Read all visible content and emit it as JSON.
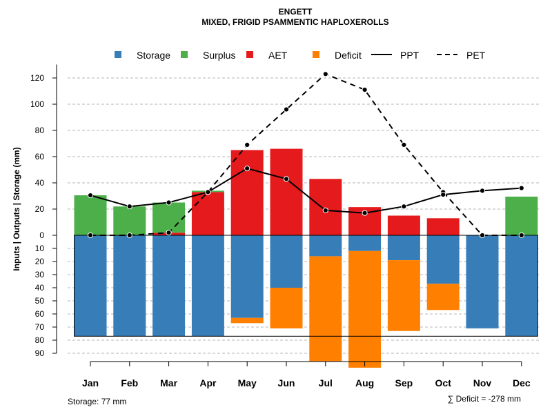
{
  "chart_data": {
    "type": "bar",
    "title": "ENGETT",
    "subtitle": "MIXED, FRIGID PSAMMENTIC HAPLOXEROLLS",
    "ylabel": "Inputs | Outputs | Storage    (mm)",
    "xlabel": "",
    "categories": [
      "Jan",
      "Feb",
      "Mar",
      "Apr",
      "May",
      "Jun",
      "Jul",
      "Aug",
      "Sep",
      "Oct",
      "Nov",
      "Dec"
    ],
    "upper_axis": {
      "ylim": [
        0,
        125
      ],
      "ticks": [
        0,
        20,
        40,
        60,
        80,
        100,
        120
      ],
      "gridlines": true
    },
    "lower_axis": {
      "ylim": [
        0,
        95
      ],
      "ticks": [
        10,
        20,
        30,
        40,
        50,
        60,
        70,
        80,
        90
      ],
      "gridlines": true
    },
    "legend": {
      "placement": "top",
      "items": [
        {
          "label": "Storage",
          "kind": "square",
          "color": "#377EB8"
        },
        {
          "label": "Surplus",
          "kind": "square",
          "color": "#4DAF4A"
        },
        {
          "label": "AET",
          "kind": "square",
          "color": "#E41A1C"
        },
        {
          "label": "Deficit",
          "kind": "square",
          "color": "#FF7F00"
        },
        {
          "label": "PPT",
          "kind": "solid-line",
          "color": "#000000"
        },
        {
          "label": "PET",
          "kind": "dashed-line",
          "color": "#000000"
        }
      ]
    },
    "series": [
      {
        "name": "AET",
        "color": "#E41A1C",
        "position": "upper-stack-base",
        "values": [
          0,
          0,
          2,
          33,
          65,
          66,
          43,
          21.5,
          15,
          13,
          0,
          0
        ]
      },
      {
        "name": "Surplus",
        "color": "#4DAF4A",
        "position": "upper-stack-top",
        "values": [
          30.5,
          22,
          23,
          1,
          0,
          0,
          0,
          0,
          0,
          0,
          0,
          29.5
        ]
      },
      {
        "name": "Storage",
        "color": "#377EB8",
        "position": "lower",
        "values": [
          77,
          77,
          77,
          77,
          63,
          40,
          16,
          12,
          19,
          37,
          71,
          77
        ]
      },
      {
        "name": "Deficit",
        "color": "#FF7F00",
        "position": "lower-stacked",
        "values": [
          0,
          0,
          0,
          0,
          4,
          31,
          80,
          89,
          54,
          20,
          0,
          0
        ]
      },
      {
        "name": "PPT",
        "color": "#000000",
        "style": "solid",
        "values": [
          30.5,
          22,
          25,
          33,
          51,
          43,
          19,
          17,
          22,
          31,
          34,
          36
        ]
      },
      {
        "name": "PET",
        "color": "#000000",
        "style": "dashed",
        "values": [
          0,
          0,
          2,
          33,
          69,
          96,
          123,
          111,
          69,
          33,
          0,
          0
        ]
      }
    ],
    "storage_capacity_line": 77,
    "annotations": {
      "storage": "Storage: 77 mm",
      "deficit": "∑ Deficit = -278 mm"
    }
  }
}
